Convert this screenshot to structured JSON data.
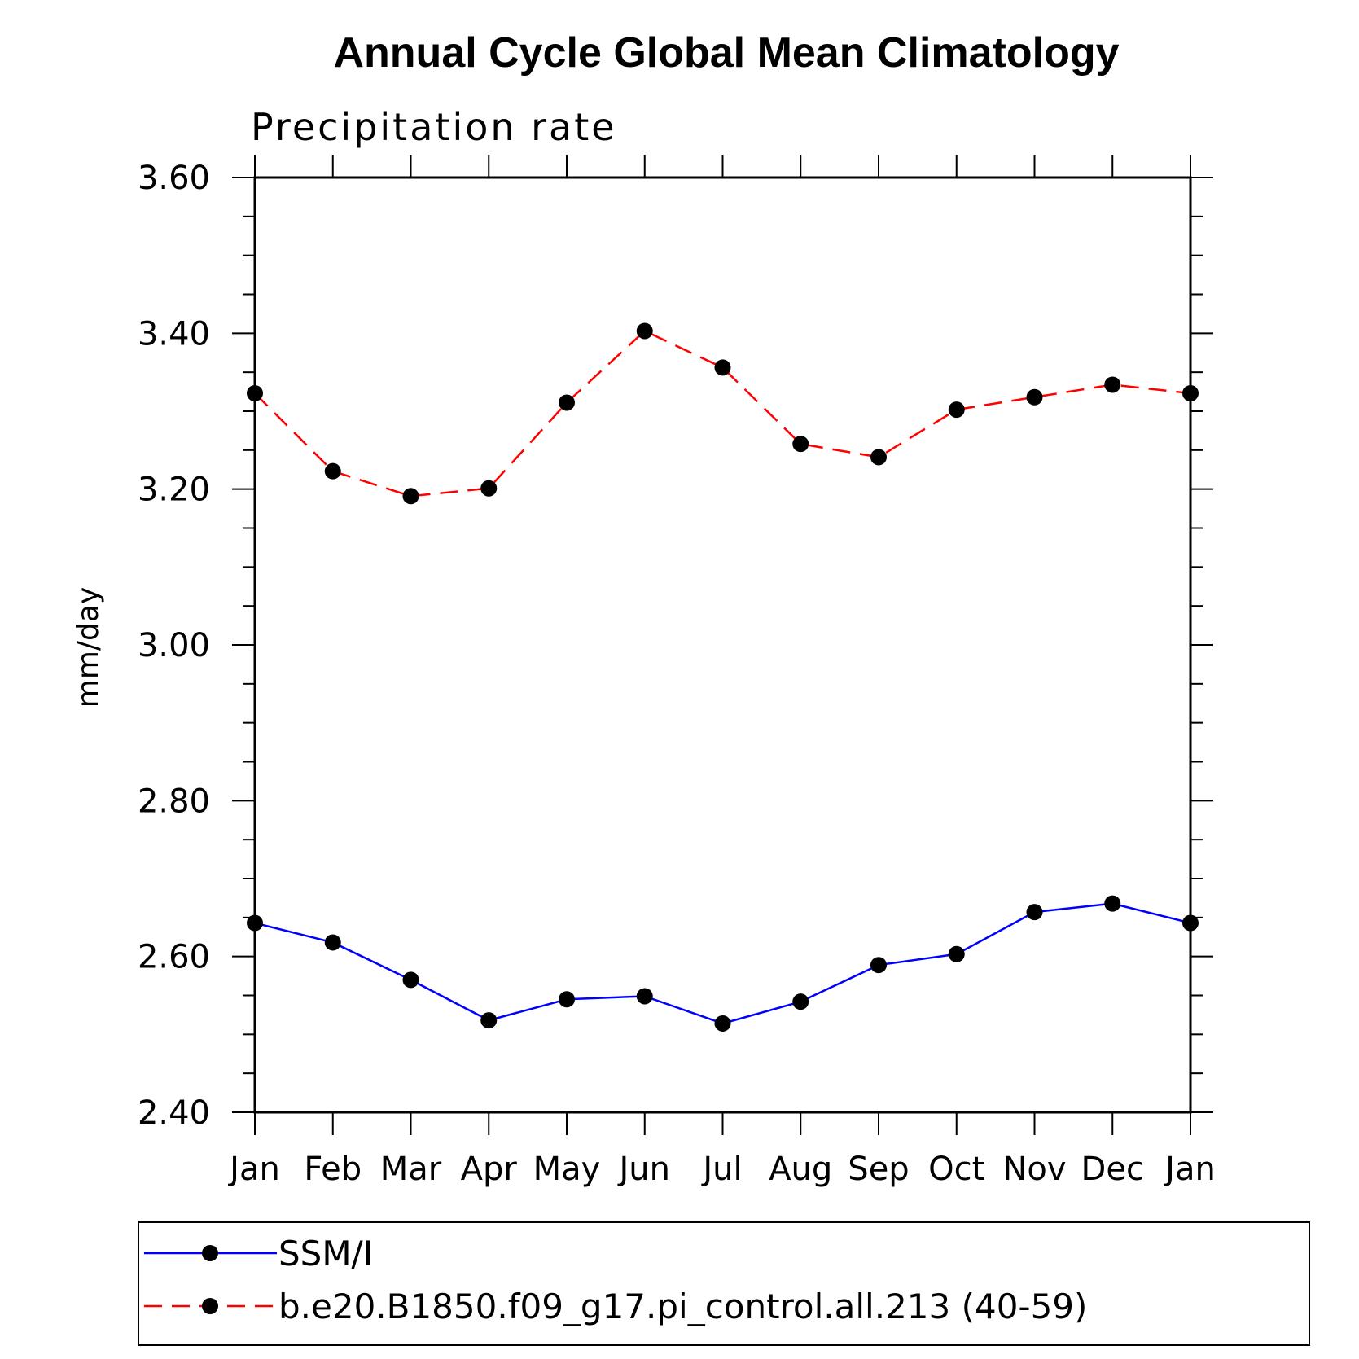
{
  "chart_data": {
    "type": "line",
    "title": "Annual Cycle Global Mean Climatology",
    "subtitle": "Precipitation rate",
    "ylabel": "mm/day",
    "xlabel": "",
    "categories": [
      "Jan",
      "Feb",
      "Mar",
      "Apr",
      "May",
      "Jun",
      "Jul",
      "Aug",
      "Sep",
      "Oct",
      "Nov",
      "Dec",
      "Jan"
    ],
    "ylim": [
      2.4,
      3.6
    ],
    "yticks": [
      "2.40",
      "2.60",
      "2.80",
      "3.00",
      "3.20",
      "3.40",
      "3.60"
    ],
    "legend_position": "bottom",
    "series": [
      {
        "name": "SSM/I",
        "color": "#0000ff",
        "dash": "solid",
        "marker": "filled-circle",
        "values": [
          2.643,
          2.618,
          2.57,
          2.518,
          2.545,
          2.549,
          2.514,
          2.542,
          2.589,
          2.603,
          2.657,
          2.668,
          2.643
        ]
      },
      {
        "name": "b.e20.B1850.f09_g17.pi_control.all.213 (40-59)",
        "color": "#ff0000",
        "dash": "dashed",
        "marker": "filled-circle",
        "values": [
          3.323,
          3.223,
          3.191,
          3.201,
          3.311,
          3.403,
          3.356,
          3.258,
          3.241,
          3.302,
          3.318,
          3.334,
          3.323
        ]
      }
    ]
  }
}
